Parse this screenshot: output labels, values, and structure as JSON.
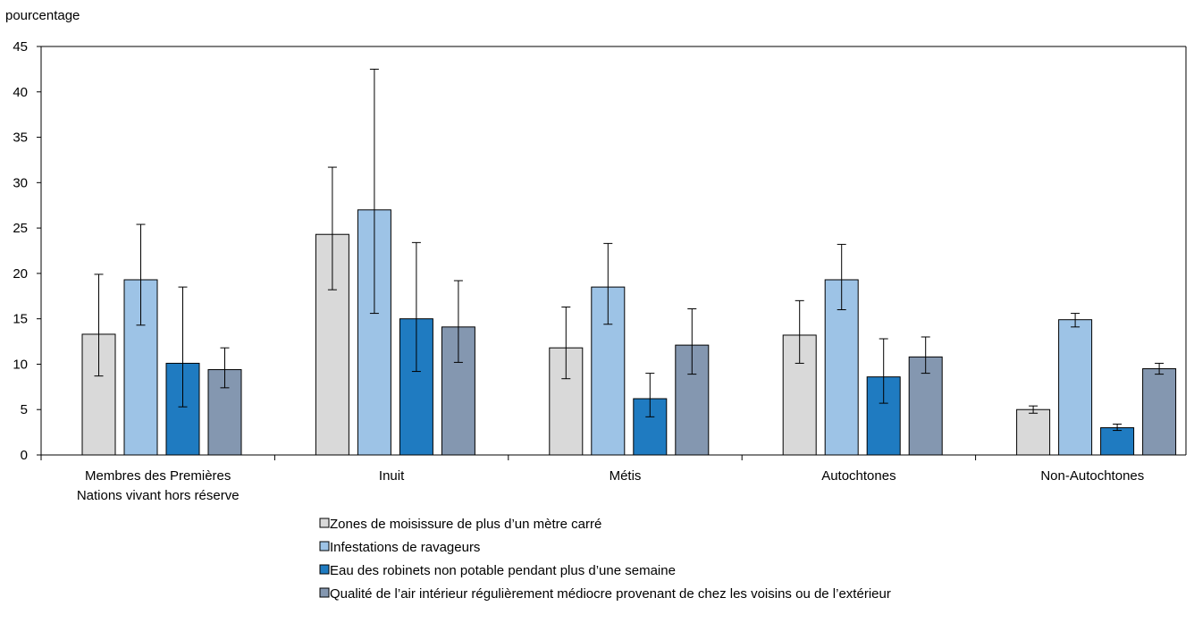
{
  "chart_data": {
    "type": "bar",
    "ylabel": "pourcentage",
    "ylim": [
      0,
      45
    ],
    "yticks": [
      0,
      5,
      10,
      15,
      20,
      25,
      30,
      35,
      40,
      45
    ],
    "grid": false,
    "legend_position": "bottom",
    "categories": [
      [
        "Membres des Premières",
        "Nations vivant hors réserve"
      ],
      [
        "Inuit"
      ],
      [
        "Métis"
      ],
      [
        "Autochtones"
      ],
      [
        "Non-Autochtones"
      ]
    ],
    "series": [
      {
        "name": "Zones de moisissure de plus d’un mètre carré",
        "color": "#d9d9d9",
        "values": [
          13.3,
          24.3,
          11.8,
          13.2,
          5.0
        ],
        "error_low": [
          8.7,
          18.2,
          8.4,
          10.1,
          4.6
        ],
        "error_high": [
          19.9,
          31.7,
          16.3,
          17.0,
          5.4
        ]
      },
      {
        "name": "Infestations de ravageurs",
        "color": "#9dc3e6",
        "values": [
          19.3,
          27.0,
          18.5,
          19.3,
          14.9
        ],
        "error_low": [
          14.3,
          15.6,
          14.4,
          16.0,
          14.1
        ],
        "error_high": [
          25.4,
          42.5,
          23.3,
          23.2,
          15.6
        ]
      },
      {
        "name": "Eau des robinets non potable pendant plus d’une semaine",
        "color": "#1f7bc1",
        "values": [
          10.1,
          15.0,
          6.2,
          8.6,
          3.0
        ],
        "error_low": [
          5.3,
          9.2,
          4.2,
          5.7,
          2.7
        ],
        "error_high": [
          18.5,
          23.4,
          9.0,
          12.8,
          3.4
        ]
      },
      {
        "name": "Qualité de l’air intérieur régulièrement médiocre provenant de chez les voisins ou de l’extérieur",
        "color": "#8497b0",
        "values": [
          9.4,
          14.1,
          12.1,
          10.8,
          9.5
        ],
        "error_low": [
          7.4,
          10.2,
          8.9,
          9.0,
          8.9
        ],
        "error_high": [
          11.8,
          19.2,
          16.1,
          13.0,
          10.1
        ]
      }
    ]
  }
}
